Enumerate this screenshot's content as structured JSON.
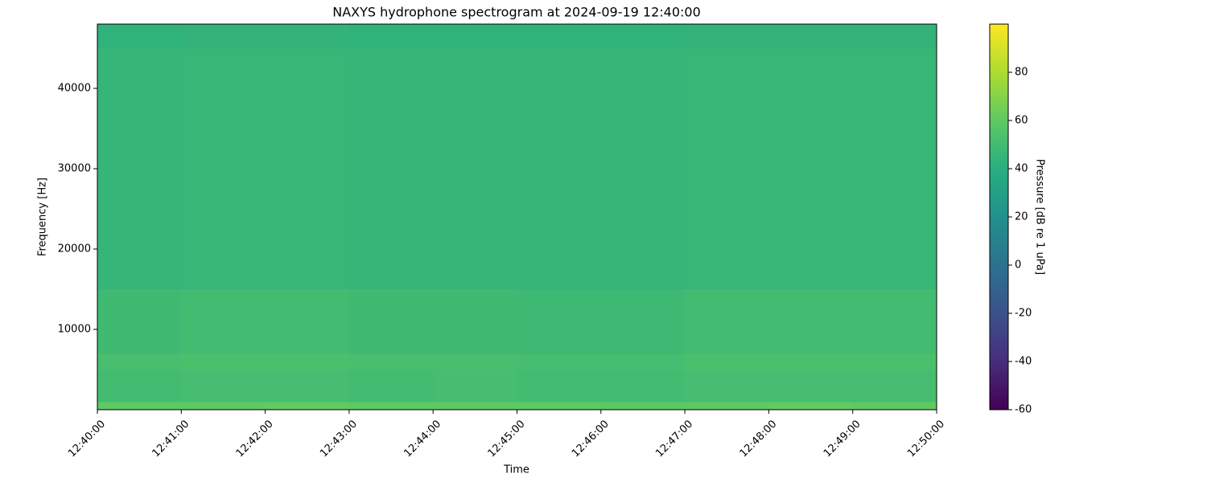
{
  "chart_data": {
    "type": "spectrogram",
    "title": "NAXYS hydrophone spectrogram at 2024-09-19 12:40:00",
    "xlabel": "Time",
    "ylabel": "Frequency [Hz]",
    "xticks": [
      "12:40:00",
      "12:41:00",
      "12:42:00",
      "12:43:00",
      "12:44:00",
      "12:45:00",
      "12:46:00",
      "12:47:00",
      "12:48:00",
      "12:49:00",
      "12:50:00"
    ],
    "ylim": [
      0,
      48000
    ],
    "yticks": [
      10000,
      20000,
      30000,
      40000
    ],
    "frequency_bins": [
      0,
      1000,
      5000,
      7000,
      15000,
      45000,
      48000
    ],
    "z": [
      [
        60,
        60,
        61,
        60,
        60,
        60,
        59,
        60,
        61,
        60
      ],
      [
        50,
        51,
        51,
        50,
        51,
        50,
        50,
        51,
        51,
        51
      ],
      [
        52,
        53,
        53,
        52,
        52,
        51,
        51,
        53,
        53,
        53
      ],
      [
        49,
        50,
        50,
        49,
        49,
        48,
        48,
        50,
        50,
        50
      ],
      [
        45,
        46,
        46,
        45,
        45,
        45,
        45,
        46,
        46,
        46
      ],
      [
        43,
        44,
        44,
        43,
        43,
        43,
        43,
        44,
        44,
        44
      ]
    ],
    "colormap": "viridis",
    "clim": [
      -60,
      100
    ],
    "cticks": [
      -60,
      -40,
      -20,
      0,
      20,
      40,
      60,
      80
    ],
    "colorbar_label": "Pressure [dB re 1 uPa]"
  }
}
